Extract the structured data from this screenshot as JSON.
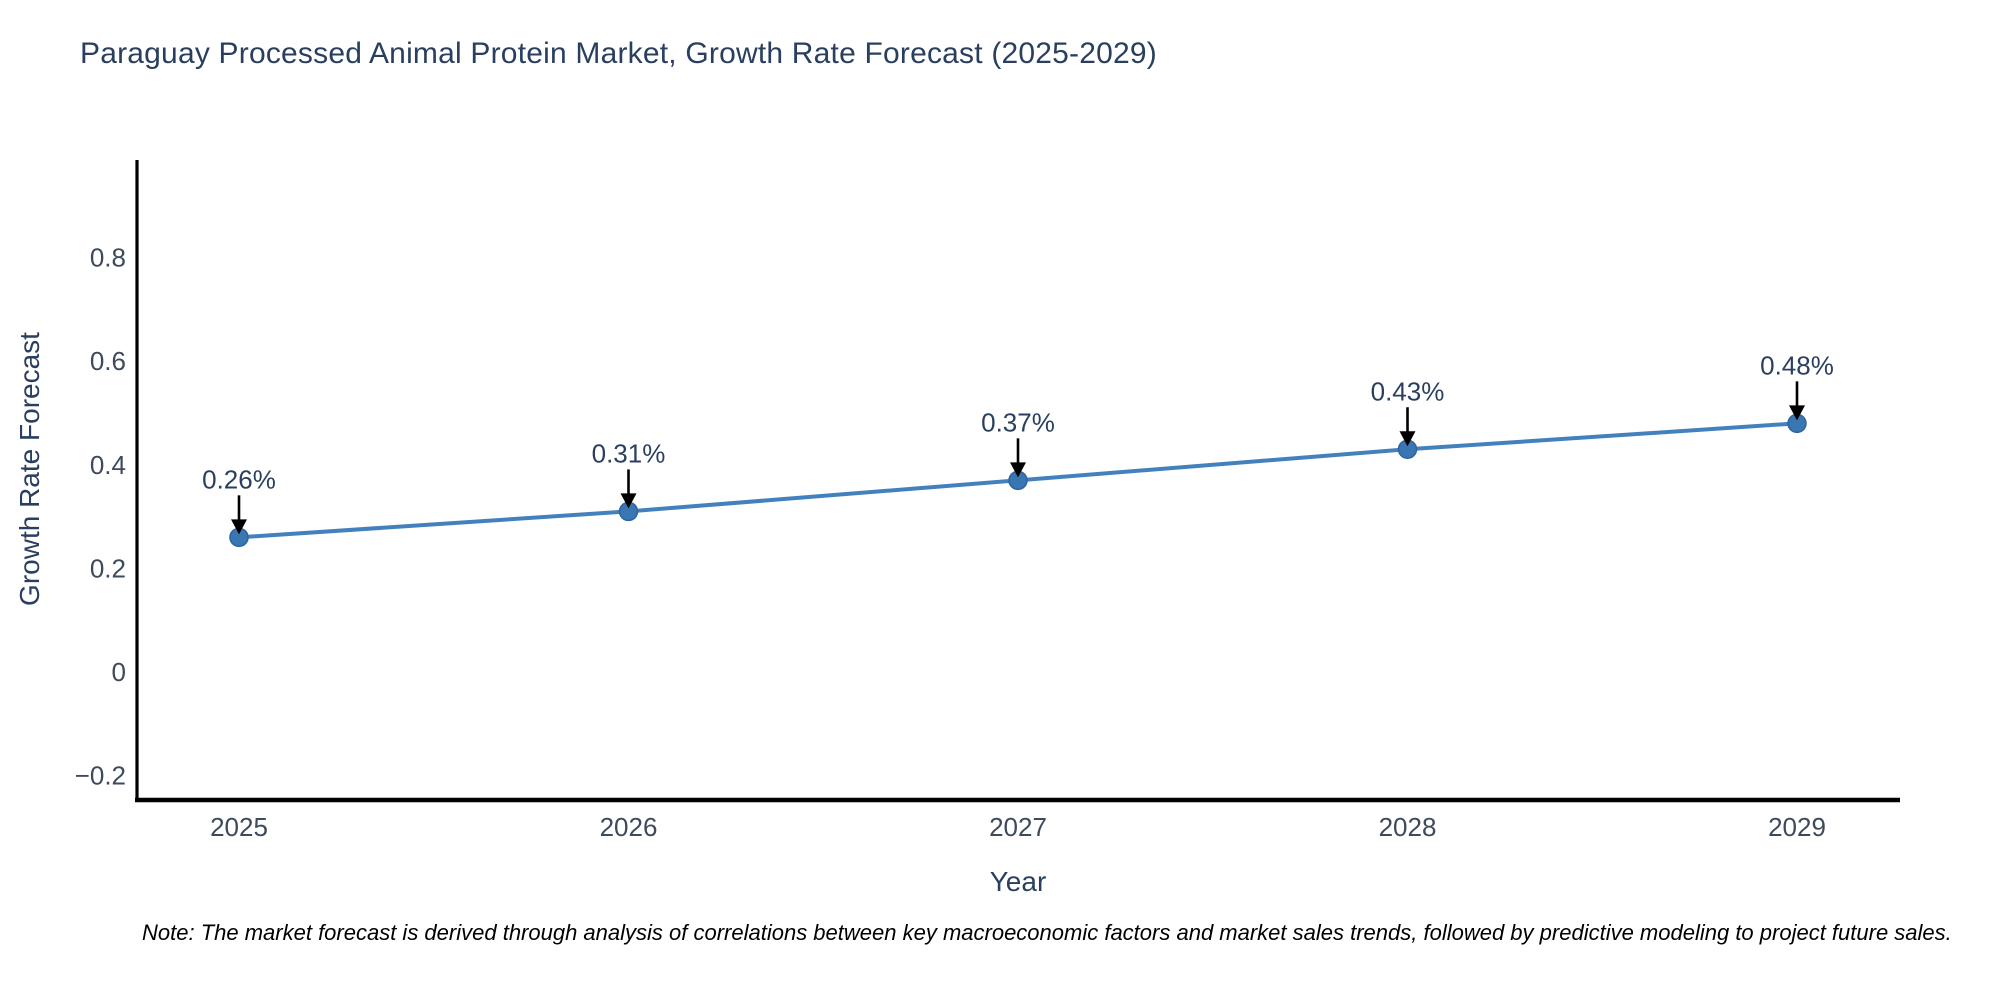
{
  "title": "Paraguay Processed Animal Protein Market, Growth Rate Forecast (2025-2029)",
  "note": "Note: The market forecast is derived through analysis of correlations between key macroeconomic factors and market sales trends, followed by predictive modeling to project future sales.",
  "chart_data": {
    "type": "line",
    "title": "Paraguay Processed Animal Protein Market, Growth Rate Forecast (2025-2029)",
    "xlabel": "Year",
    "ylabel": "Growth Rate Forecast",
    "x": [
      2025,
      2026,
      2027,
      2028,
      2029
    ],
    "series": [
      {
        "name": "Growth Rate Forecast",
        "values": [
          0.26,
          0.31,
          0.37,
          0.43,
          0.48
        ]
      }
    ],
    "annotations": [
      "0.26%",
      "0.31%",
      "0.37%",
      "0.43%",
      "0.48%"
    ],
    "xticks": [
      "2025",
      "2026",
      "2027",
      "2028",
      "2029"
    ],
    "yticks": [
      -0.2,
      0,
      0.2,
      0.4,
      0.6,
      0.8
    ],
    "ytick_labels": [
      "−0.2",
      "0",
      "0.2",
      "0.4",
      "0.6",
      "0.8"
    ],
    "xlim": [
      2024.74,
      2029.26
    ],
    "ylim": [
      -0.247,
      0.988
    ],
    "grid": false,
    "legend_position": "none",
    "colors": {
      "line": "#4381bd",
      "marker": "#3a76b2",
      "marker_edge": "#2f64a0",
      "annotation_arrow": "#000000",
      "annotation_text": "#2a3f5f",
      "tick_text": "#3d4a5c",
      "axis_spine": "#000000",
      "title_text": "#2a3f5f"
    }
  }
}
